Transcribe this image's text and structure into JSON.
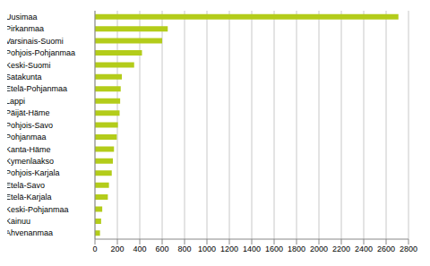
{
  "chart_data": {
    "type": "bar",
    "orientation": "horizontal",
    "categories": [
      "Uusimaa",
      "Pirkanmaa",
      "Varsinais-Suomi",
      "Pohjois-Pohjanmaa",
      "Keski-Suomi",
      "Satakunta",
      "Etelä-Pohjanmaa",
      "Lappi",
      "Päijät-Häme",
      "Pohjois-Savo",
      "Pohjanmaa",
      "Kanta-Häme",
      "Kymenlaakso",
      "Pohjois-Karjala",
      "Etelä-Savo",
      "Etelä-Karjala",
      "Keski-Pohjanmaa",
      "Kainuu",
      "Ahvenanmaa"
    ],
    "values": [
      2710,
      650,
      600,
      420,
      350,
      240,
      230,
      225,
      220,
      205,
      195,
      170,
      160,
      150,
      125,
      115,
      65,
      55,
      45
    ],
    "color": "#b3cc1a",
    "xlim": [
      0,
      2800
    ],
    "xticks": [
      0,
      200,
      400,
      600,
      800,
      1000,
      1200,
      1400,
      1600,
      1800,
      2000,
      2200,
      2400,
      2600,
      2800
    ],
    "grid": true
  }
}
